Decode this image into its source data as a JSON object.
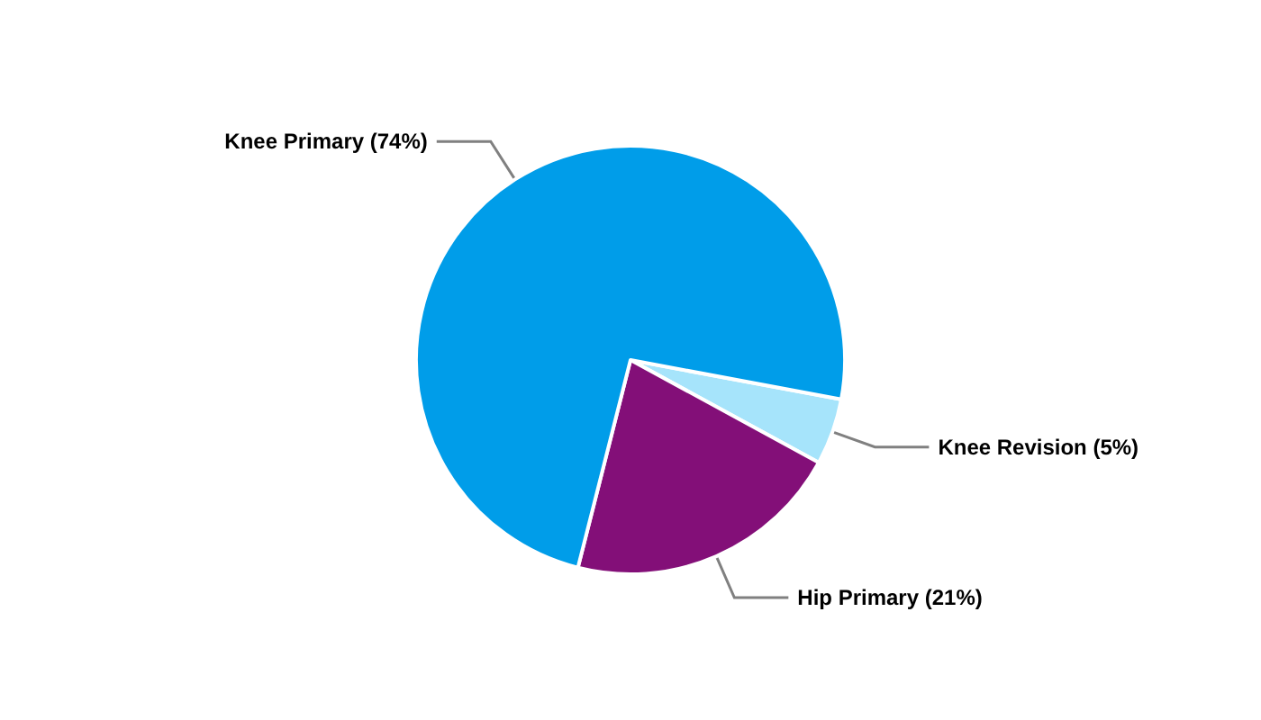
{
  "chart_data": {
    "type": "pie",
    "categories": [
      "Knee Revision",
      "Hip Primary",
      "Knee Primary"
    ],
    "values": [
      5,
      21,
      74
    ],
    "colors": [
      "#a6e4fb",
      "#830f78",
      "#009de9"
    ],
    "value_labels": [
      "(5%)",
      "(21%)",
      "(74%)"
    ],
    "legend": false
  }
}
